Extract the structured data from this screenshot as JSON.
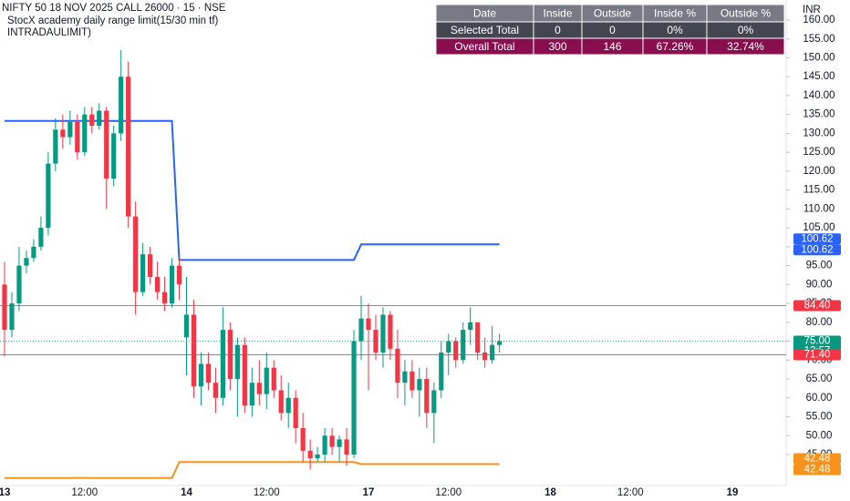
{
  "chart_data": {
    "type": "candlestick",
    "title": "NIFTY 50 18 NOV 2025 CALL 26000 · 15 · NSE",
    "subtitle": "StocX academy daily range limit(15/30 min tf)",
    "subtitle2": "INTRADAULIMIT)",
    "currency": "INR",
    "up_color": "#089981",
    "down_color": "#f23645",
    "categories": [
      "13",
      null,
      null,
      null,
      null,
      null,
      null,
      null,
      null,
      null,
      null,
      "12:00",
      null,
      null,
      null,
      null,
      null,
      null,
      null,
      null,
      null,
      null,
      null,
      null,
      null,
      "14",
      null,
      null,
      null,
      null,
      null,
      null,
      null,
      null,
      null,
      null,
      "12:00",
      null,
      null,
      null,
      null,
      null,
      null,
      null,
      null,
      null,
      null,
      null,
      null,
      null,
      "17",
      null,
      null,
      null,
      null,
      null,
      null,
      null,
      null,
      null,
      null,
      "12:00",
      null,
      null,
      null,
      null,
      null,
      null,
      null,
      null,
      null,
      null,
      null,
      null,
      null,
      "18",
      null,
      null,
      null,
      null,
      null,
      null,
      null,
      null,
      null,
      null,
      "12:00",
      null,
      null,
      null,
      null,
      null,
      null,
      null,
      null,
      null,
      null,
      null,
      null,
      null,
      "19"
    ],
    "open": [
      90,
      78,
      85,
      95,
      97,
      100,
      105,
      122,
      131,
      129,
      133,
      125,
      135,
      132,
      136,
      118,
      130,
      145,
      108,
      88,
      98,
      92,
      88,
      85,
      95,
      76,
      82,
      63,
      69,
      64,
      60,
      78,
      65,
      74,
      58,
      64,
      61,
      68,
      62,
      56,
      60,
      52,
      46,
      44,
      45,
      50,
      47,
      49,
      45,
      75,
      81,
      78,
      72,
      82,
      73,
      64,
      67,
      62,
      65,
      56,
      62,
      72,
      75,
      70,
      78,
      80,
      72,
      70,
      74,
      null,
      null,
      null,
      null,
      null,
      null,
      null,
      null,
      null,
      null,
      null,
      null,
      null,
      null,
      null,
      null,
      null,
      null,
      null,
      null,
      null,
      null,
      null,
      null,
      null,
      null,
      null,
      null,
      null,
      null,
      null,
      null
    ],
    "high": [
      96,
      88,
      100,
      99,
      102,
      108,
      125,
      134,
      135,
      136,
      135,
      137,
      137,
      138,
      137,
      132,
      152,
      149,
      112,
      101,
      100,
      96,
      92,
      97,
      97,
      92,
      86,
      72,
      72,
      68,
      84,
      80,
      76,
      76,
      68,
      70,
      72,
      70,
      66,
      64,
      62,
      56,
      49,
      47,
      52,
      52,
      50,
      52,
      78,
      87,
      85,
      82,
      84,
      83,
      78,
      70,
      70,
      68,
      68,
      64,
      75,
      77,
      76,
      80,
      84,
      80,
      76,
      79,
      77,
      null,
      null,
      null,
      null,
      null,
      null,
      null,
      null,
      null,
      null,
      null,
      null,
      null,
      null,
      null,
      null,
      null,
      null,
      null,
      null,
      null,
      null,
      null,
      null,
      null,
      null,
      null,
      null,
      null,
      null,
      null,
      null
    ],
    "low": [
      71,
      76,
      83,
      93,
      96,
      99,
      103,
      120,
      126,
      127,
      123,
      124,
      130,
      131,
      110,
      116,
      128,
      105,
      82,
      87,
      90,
      86,
      83,
      84,
      86,
      66,
      60,
      58,
      62,
      56,
      58,
      62,
      55,
      56,
      55,
      58,
      57,
      60,
      54,
      52,
      48,
      43,
      41,
      43,
      43,
      45,
      43,
      42,
      44,
      70,
      62,
      70,
      68,
      70,
      60,
      58,
      60,
      55,
      52,
      48,
      60,
      66,
      68,
      69,
      74,
      70,
      68,
      69,
      72,
      null,
      null,
      null,
      null,
      null,
      null,
      null,
      null,
      null,
      null,
      null,
      null,
      null,
      null,
      null,
      null,
      null,
      null,
      null,
      null,
      null,
      null,
      null,
      null,
      null,
      null,
      null,
      null,
      null,
      null,
      null,
      null
    ],
    "close": [
      78,
      85,
      95,
      97,
      100,
      105,
      122,
      131,
      129,
      133,
      125,
      135,
      132,
      136,
      118,
      130,
      145,
      108,
      88,
      98,
      92,
      88,
      85,
      95,
      90,
      82,
      63,
      69,
      64,
      60,
      78,
      65,
      74,
      58,
      64,
      61,
      68,
      62,
      56,
      60,
      52,
      46,
      44,
      45,
      50,
      47,
      49,
      45,
      75,
      81,
      78,
      72,
      82,
      73,
      64,
      67,
      62,
      65,
      56,
      62,
      72,
      75,
      70,
      78,
      80,
      72,
      70,
      74,
      75,
      null,
      null,
      null,
      null,
      null,
      null,
      null,
      null,
      null,
      null,
      null,
      null,
      null,
      null,
      null,
      null,
      null,
      null,
      null,
      null,
      null,
      null,
      null,
      null,
      null,
      null,
      null,
      null,
      null,
      null,
      null,
      null
    ],
    "lines": [
      {
        "color": "#2962ff",
        "values": [
          133.3,
          133.3,
          133.3,
          133.3,
          133.3,
          133.3,
          133.3,
          133.3,
          133.3,
          133.3,
          133.3,
          133.3,
          133.3,
          133.3,
          133.3,
          133.3,
          133.3,
          133.3,
          133.3,
          133.3,
          133.3,
          133.3,
          133.3,
          133.3,
          96.5,
          96.5,
          96.5,
          96.5,
          96.5,
          96.5,
          96.5,
          96.5,
          96.5,
          96.5,
          96.5,
          96.5,
          96.5,
          96.5,
          96.5,
          96.5,
          96.5,
          96.5,
          96.5,
          96.5,
          96.5,
          96.5,
          96.5,
          96.5,
          96.5,
          100.62,
          100.62,
          100.62,
          100.62,
          100.62,
          100.62,
          100.62,
          100.62,
          100.62,
          100.62,
          100.62,
          100.62,
          100.62,
          100.62,
          100.62,
          100.62,
          100.62,
          100.62,
          100.62,
          100.62,
          null,
          null,
          null,
          null,
          null,
          null,
          null,
          null,
          null,
          null,
          null,
          null,
          null,
          null,
          null,
          null,
          null,
          null,
          null,
          null,
          null,
          null,
          null,
          null,
          null,
          null,
          null,
          null,
          null,
          null,
          null,
          null
        ]
      },
      {
        "color": "#f7931a",
        "values": [
          38.8,
          38.8,
          38.8,
          38.8,
          38.8,
          38.8,
          38.8,
          38.8,
          38.8,
          38.8,
          38.8,
          38.8,
          38.8,
          38.8,
          38.8,
          38.8,
          38.8,
          38.8,
          38.8,
          38.8,
          38.8,
          38.8,
          38.8,
          38.8,
          43,
          43,
          43,
          43,
          43,
          43,
          43,
          43,
          43,
          43,
          43,
          43,
          43,
          43,
          43,
          43,
          43,
          43,
          43,
          43,
          43,
          43,
          43,
          43,
          43,
          42.48,
          42.48,
          42.48,
          42.48,
          42.48,
          42.48,
          42.48,
          42.48,
          42.48,
          42.48,
          42.48,
          42.48,
          42.48,
          42.48,
          42.48,
          42.48,
          42.48,
          42.48,
          42.48,
          42.48,
          null,
          null,
          null,
          null,
          null,
          null,
          null,
          null,
          null,
          null,
          null,
          null,
          null,
          null,
          null,
          null,
          null,
          null,
          null,
          null,
          null,
          null,
          null,
          null,
          null,
          null,
          null,
          null,
          null,
          null,
          null,
          null
        ]
      }
    ],
    "price_tags": [
      {
        "value": 100.62,
        "color": "#2962ff",
        "offset": "up"
      },
      {
        "value": 100.62,
        "color": "#2962ff",
        "offset": "down"
      },
      {
        "value": 84.4,
        "label": "84.40",
        "color": "#f23645",
        "line": "solid"
      },
      {
        "value": 75,
        "label": "75.00",
        "color": "#089981",
        "line": "dotted"
      },
      {
        "value": 71.4,
        "label": "71.40",
        "color": "#f23645",
        "line": "solid"
      },
      {
        "value": 42.48,
        "color": "#f7931a",
        "offset": "up"
      },
      {
        "value": 42.48,
        "color": "#f7931a",
        "offset": "down"
      }
    ],
    "countdown": "12:57",
    "ylim": [
      36.8,
      165.3
    ],
    "yticks": [
      {
        "value": 160,
        "label": "160.00"
      },
      {
        "value": 155,
        "label": "155.00"
      },
      {
        "value": 150,
        "label": "150.00"
      },
      {
        "value": 145,
        "label": "145.00"
      },
      {
        "value": 140,
        "label": "140.00"
      },
      {
        "value": 135,
        "label": "135.00"
      },
      {
        "value": 130,
        "label": "130.00"
      },
      {
        "value": 125,
        "label": "125.00"
      },
      {
        "value": 120,
        "label": "120.00"
      },
      {
        "value": 115,
        "label": "115.00"
      },
      {
        "value": 110,
        "label": "110.00"
      },
      {
        "value": 105,
        "label": "105.00"
      },
      {
        "value": 100,
        "label": "100.00"
      },
      {
        "value": 95,
        "label": "95.00"
      },
      {
        "value": 90,
        "label": "90.00"
      },
      {
        "value": 85,
        "label": "85.00"
      },
      {
        "value": 80,
        "label": "80.00"
      },
      {
        "value": 75,
        "label": "75.00"
      },
      {
        "value": 70,
        "label": "70.00"
      },
      {
        "value": 65,
        "label": "65.00"
      },
      {
        "value": 60,
        "label": "60.00"
      },
      {
        "value": 55,
        "label": "55.00"
      },
      {
        "value": 50,
        "label": "50.00"
      },
      {
        "value": 45,
        "label": "45.00"
      }
    ],
    "grid": false
  },
  "table": {
    "columns": [
      "Date",
      "Inside",
      "Outside",
      "Inside %",
      "Outside %"
    ],
    "rows": [
      [
        "Selected Total",
        "0",
        "0",
        "0%",
        "0%"
      ],
      [
        "Overall Total",
        "300",
        "146",
        "67.26%",
        "32.74%"
      ]
    ],
    "header_color": "#787b86",
    "row_colors": [
      "#434651",
      "#880e4f"
    ]
  }
}
